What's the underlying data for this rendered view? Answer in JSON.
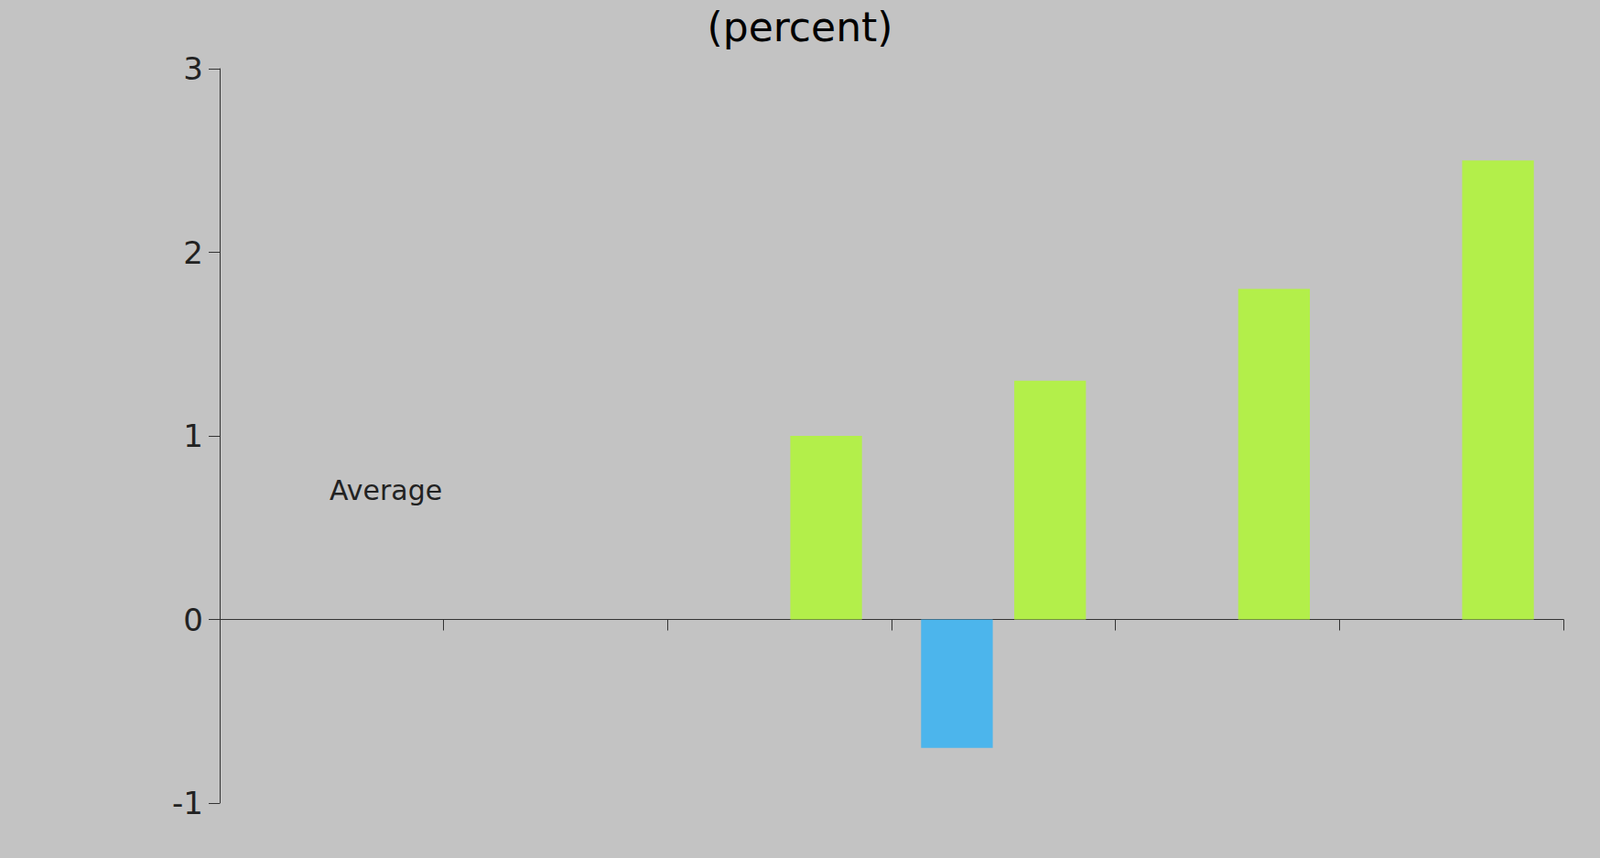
{
  "chart_data": {
    "type": "bar",
    "title": "(percent)",
    "categories": [
      null,
      null,
      null,
      null,
      null,
      null
    ],
    "series": [
      {
        "color": "#4cb5ec",
        "values": [
          null,
          null,
          null,
          -0.7,
          null,
          null
        ]
      },
      {
        "color": "#b3ef4a",
        "values": [
          null,
          null,
          1.0,
          1.3,
          1.8,
          2.5
        ]
      }
    ],
    "annotations": [
      "Average"
    ],
    "ylim": [
      -1,
      3
    ],
    "yticks": [
      -1,
      0,
      1,
      2,
      3
    ],
    "grid": false
  }
}
